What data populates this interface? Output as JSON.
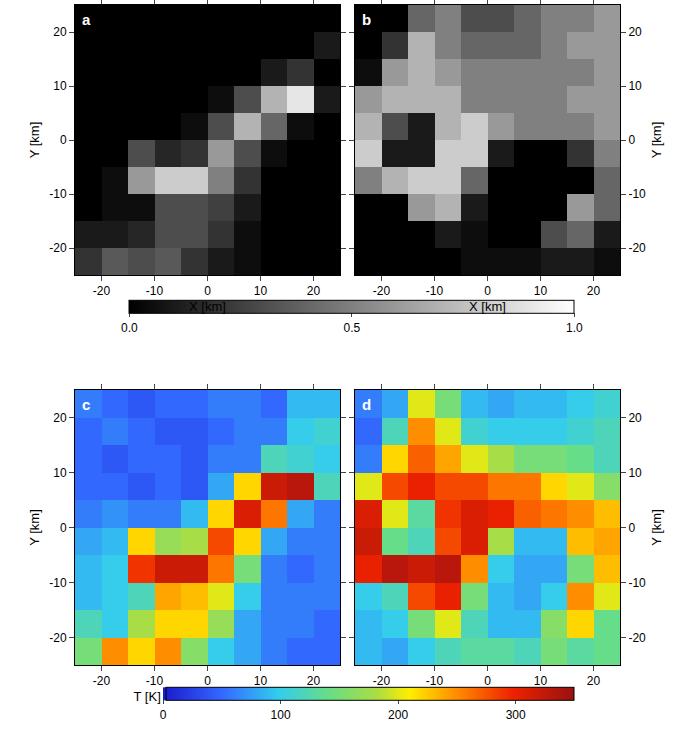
{
  "chart_data": {
    "type": "heatmap",
    "groups": [
      {
        "colorbar": {
          "range": [
            0,
            1
          ],
          "color": "gray",
          "ticks": [
            {
              "value": 0,
              "label": "0.0"
            },
            {
              "value": 0.5,
              "label": "0.5"
            },
            {
              "value": 1,
              "label": "1.0"
            }
          ]
        },
        "panels": [
          {
            "label": "a",
            "x_label": "X [km]",
            "y_label": "Y [km]",
            "xlim": [
              -25,
              25
            ],
            "ylim": [
              -25,
              25
            ],
            "xticks": [
              -20,
              -10,
              0,
              10,
              20
            ],
            "yticks": [
              -20,
              -10,
              0,
              10,
              20
            ],
            "x": [
              -22.5,
              -17.5,
              -12.5,
              -7.5,
              -2.5,
              2.5,
              7.5,
              12.5,
              17.5,
              22.5
            ],
            "y": [
              -22.5,
              -17.5,
              -12.5,
              -7.5,
              -2.5,
              2.5,
              7.5,
              12.5,
              17.5,
              22.5
            ],
            "z": [
              [
                0.2,
                0.35,
                0.3,
                0.35,
                0.2,
                0.1,
                0.05,
                0,
                0,
                0
              ],
              [
                0.1,
                0.1,
                0.15,
                0.3,
                0.3,
                0.2,
                0.05,
                0,
                0,
                0
              ],
              [
                0,
                0.05,
                0.05,
                0.3,
                0.3,
                0.25,
                0.1,
                0,
                0,
                0
              ],
              [
                0,
                0.05,
                0.6,
                0.8,
                0.8,
                0.5,
                0.2,
                0,
                0,
                0
              ],
              [
                0,
                0,
                0.3,
                0.15,
                0.2,
                0.6,
                0.3,
                0.05,
                0,
                0
              ],
              [
                0,
                0,
                0,
                0,
                0.05,
                0.3,
                0.7,
                0.4,
                0.05,
                0
              ],
              [
                0,
                0,
                0,
                0,
                0,
                0.05,
                0.3,
                0.7,
                0.9,
                0.1
              ],
              [
                0,
                0,
                0,
                0,
                0,
                0,
                0,
                0.1,
                0.2,
                0
              ],
              [
                0,
                0,
                0,
                0,
                0,
                0,
                0,
                0,
                0,
                0.1
              ],
              [
                0,
                0,
                0,
                0,
                0,
                0,
                0,
                0,
                0,
                0
              ]
            ]
          },
          {
            "label": "b",
            "x_label": "X [km]",
            "y_label": "Y [km]",
            "xlim": [
              -25,
              25
            ],
            "ylim": [
              -25,
              25
            ],
            "xticks": [
              -20,
              -10,
              0,
              10,
              20
            ],
            "yticks": [
              -20,
              -10,
              0,
              10,
              20
            ],
            "x": [
              -22.5,
              -17.5,
              -12.5,
              -7.5,
              -2.5,
              2.5,
              7.5,
              12.5,
              17.5,
              22.5
            ],
            "y": [
              -22.5,
              -17.5,
              -12.5,
              -7.5,
              -2.5,
              2.5,
              7.5,
              12.5,
              17.5,
              22.5
            ],
            "z": [
              [
                0,
                0,
                0,
                0,
                0.05,
                0.05,
                0.05,
                0.1,
                0.1,
                0.05
              ],
              [
                0,
                0,
                0,
                0.1,
                0.05,
                0,
                0,
                0.3,
                0.4,
                0.1
              ],
              [
                0,
                0,
                0.6,
                0.7,
                0.1,
                0,
                0,
                0,
                0.6,
                0.4
              ],
              [
                0.5,
                0.7,
                0.8,
                0.8,
                0.4,
                0,
                0,
                0,
                0,
                0.4
              ],
              [
                0.8,
                0.1,
                0.1,
                0.8,
                0.8,
                0.1,
                0,
                0,
                0.2,
                0.5
              ],
              [
                0.7,
                0.3,
                0.1,
                0.7,
                0.8,
                0.6,
                0.5,
                0.5,
                0.5,
                0.6
              ],
              [
                0.6,
                0.7,
                0.7,
                0.7,
                0.5,
                0.5,
                0.5,
                0.5,
                0.6,
                0.6
              ],
              [
                0.05,
                0.6,
                0.7,
                0.6,
                0.5,
                0.5,
                0.5,
                0.5,
                0.5,
                0.6
              ],
              [
                0,
                0.2,
                0.7,
                0.5,
                0.4,
                0.4,
                0.4,
                0.5,
                0.6,
                0.6
              ],
              [
                0,
                0,
                0.4,
                0.5,
                0.3,
                0.3,
                0.4,
                0.5,
                0.5,
                0.6
              ]
            ]
          }
        ]
      },
      {
        "colorbar": {
          "range": [
            0,
            350
          ],
          "color": "jet",
          "label": "T [K]",
          "ticks": [
            0,
            100,
            200,
            300
          ]
        },
        "panels": [
          {
            "label": "c",
            "y_label": "Y [km]",
            "xlim": [
              -25,
              25
            ],
            "ylim": [
              -25,
              25
            ],
            "xticks": [
              -20,
              -10,
              0,
              10,
              20
            ],
            "yticks": [
              -20,
              -10,
              0,
              10,
              20
            ],
            "x": [
              -22.5,
              -17.5,
              -12.5,
              -7.5,
              -2.5,
              2.5,
              7.5,
              12.5,
              17.5,
              22.5
            ],
            "y": [
              -22.5,
              -17.5,
              -12.5,
              -7.5,
              -2.5,
              2.5,
              7.5,
              12.5,
              17.5,
              22.5
            ],
            "z": [
              [
                150,
                250,
                220,
                250,
                160,
                100,
                80,
                60,
                50,
                50
              ],
              [
                120,
                100,
                180,
                220,
                220,
                170,
                80,
                60,
                60,
                50
              ],
              [
                90,
                100,
                120,
                240,
                230,
                200,
                100,
                60,
                60,
                60
              ],
              [
                90,
                100,
                290,
                320,
                320,
                260,
                150,
                60,
                50,
                60
              ],
              [
                80,
                90,
                220,
                170,
                180,
                280,
                220,
                80,
                60,
                60
              ],
              [
                60,
                70,
                60,
                60,
                90,
                220,
                310,
                260,
                80,
                60
              ],
              [
                50,
                50,
                40,
                50,
                40,
                80,
                220,
                320,
                330,
                120
              ],
              [
                50,
                40,
                50,
                50,
                40,
                60,
                60,
                120,
                110,
                100
              ],
              [
                50,
                60,
                50,
                40,
                40,
                50,
                60,
                60,
                100,
                110
              ],
              [
                60,
                50,
                40,
                50,
                50,
                60,
                60,
                50,
                90,
                90
              ]
            ]
          },
          {
            "label": "d",
            "y_label": "Y [km]",
            "xlim": [
              -25,
              25
            ],
            "ylim": [
              -25,
              25
            ],
            "xticks": [
              -20,
              -10,
              0,
              10,
              20
            ],
            "yticks": [
              -20,
              -10,
              0,
              10,
              20
            ],
            "x": [
              -22.5,
              -17.5,
              -12.5,
              -7.5,
              -2.5,
              2.5,
              7.5,
              12.5,
              17.5,
              22.5
            ],
            "y": [
              -22.5,
              -17.5,
              -12.5,
              -7.5,
              -2.5,
              2.5,
              7.5,
              12.5,
              17.5,
              22.5
            ],
            "z": [
              [
                90,
                80,
                100,
                120,
                130,
                130,
                120,
                150,
                130,
                140
              ],
              [
                90,
                100,
                150,
                200,
                120,
                90,
                90,
                160,
                220,
                140
              ],
              [
                100,
                120,
                280,
                300,
                150,
                90,
                80,
                100,
                250,
                200
              ],
              [
                300,
                330,
                320,
                330,
                250,
                100,
                80,
                80,
                150,
                230
              ],
              [
                320,
                140,
                120,
                280,
                310,
                180,
                90,
                90,
                230,
                240
              ],
              [
                310,
                200,
                130,
                290,
                310,
                300,
                270,
                260,
                250,
                230
              ],
              [
                200,
                280,
                300,
                280,
                280,
                260,
                260,
                220,
                200,
                160
              ],
              [
                60,
                220,
                270,
                240,
                200,
                180,
                150,
                150,
                140,
                120
              ],
              [
                50,
                120,
                250,
                200,
                110,
                100,
                100,
                100,
                110,
                120
              ],
              [
                60,
                80,
                200,
                150,
                90,
                80,
                90,
                90,
                100,
                110
              ]
            ]
          }
        ]
      }
    ]
  }
}
